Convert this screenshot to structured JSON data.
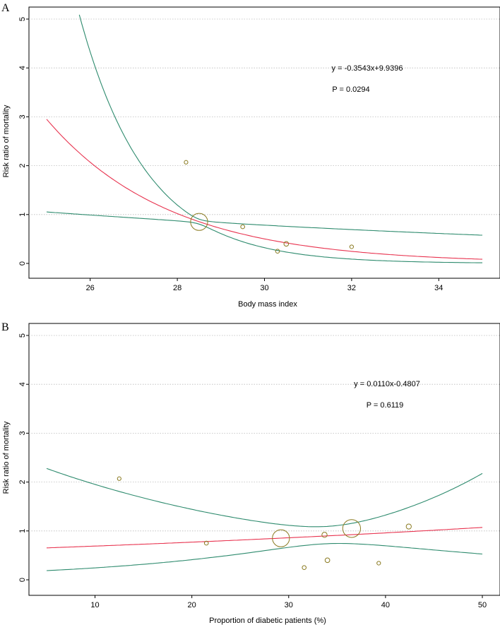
{
  "chart_data": [
    {
      "panel": "A",
      "type": "scatter",
      "xlabel": "Body mass index",
      "ylabel": "Risk ratio of mortality",
      "xlim": [
        25,
        35
      ],
      "ylim": [
        0,
        5
      ],
      "xticks": [
        26,
        28,
        30,
        32,
        34
      ],
      "yticks": [
        0,
        1,
        2,
        3,
        4,
        5
      ],
      "grid": "horizontal dotted",
      "equation": "y = -0.3543x+9.9396",
      "p_value": "P = 0.0294",
      "points": [
        {
          "x": 28.2,
          "y": 2.07,
          "weight": 1
        },
        {
          "x": 28.5,
          "y": 0.85,
          "weight": 6
        },
        {
          "x": 29.5,
          "y": 0.75,
          "weight": 1.2
        },
        {
          "x": 30.3,
          "y": 0.25,
          "weight": 1.2
        },
        {
          "x": 30.5,
          "y": 0.4,
          "weight": 1.6
        },
        {
          "x": 32.0,
          "y": 0.34,
          "weight": 1
        }
      ],
      "fit": {
        "slope": -0.3543,
        "intercept": 9.9396,
        "se": 0.15,
        "cov_x": 28.5,
        "se0": 0.03
      },
      "fit_color": "#e8334f",
      "ci_color": "#2e8b6e",
      "point_color": "#8a7a20"
    },
    {
      "panel": "B",
      "type": "scatter",
      "xlabel": "Proportion of diabetic patients (%)",
      "ylabel": "Risk ratio of mortality",
      "xlim": [
        5,
        50
      ],
      "ylim": [
        0,
        5
      ],
      "xticks": [
        10,
        20,
        30,
        40,
        50
      ],
      "yticks": [
        0,
        1,
        2,
        3,
        4,
        5
      ],
      "grid": "horizontal dotted",
      "equation": "y = 0.0110x-0.4807",
      "p_value": "P = 0.6119",
      "points": [
        {
          "x": 12.5,
          "y": 2.07,
          "weight": 1
        },
        {
          "x": 21.5,
          "y": 0.75,
          "weight": 1.2
        },
        {
          "x": 29.2,
          "y": 0.85,
          "weight": 6
        },
        {
          "x": 31.6,
          "y": 0.25,
          "weight": 1.2
        },
        {
          "x": 33.7,
          "y": 0.92,
          "weight": 2
        },
        {
          "x": 34.0,
          "y": 0.4,
          "weight": 1.6
        },
        {
          "x": 36.5,
          "y": 1.05,
          "weight": 6.5
        },
        {
          "x": 39.3,
          "y": 0.34,
          "weight": 1
        },
        {
          "x": 42.4,
          "y": 1.09,
          "weight": 1.9
        }
      ],
      "fit": {
        "slope": 0.011,
        "intercept": -0.4807,
        "se": 0.0217,
        "cov_x": 34,
        "se0": 0.1
      },
      "fit_color": "#e8334f",
      "ci_color": "#2e8b6e",
      "point_color": "#8a7a20"
    }
  ]
}
